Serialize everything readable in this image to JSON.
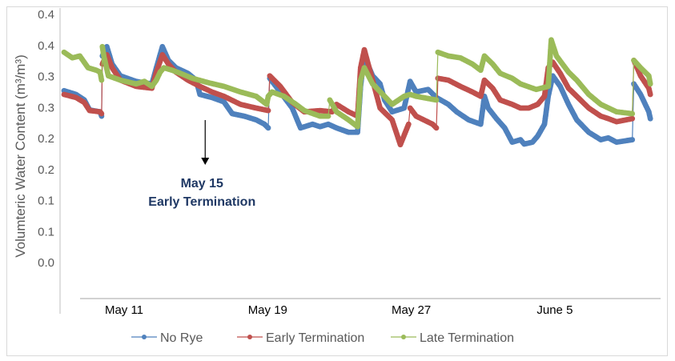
{
  "chart_data": {
    "type": "line",
    "title": "",
    "ylabel": "Volumteric Water Content (m³/m³)",
    "xlabel": "",
    "ylim": [
      -0.055,
      0.4
    ],
    "yticks": [
      0.4,
      0.35,
      0.3,
      0.25,
      0.2,
      0.15,
      0.1,
      0.05,
      0.0
    ],
    "ytick_labels": [
      "0.4",
      "0.4",
      "0.3",
      "0.3",
      "0.2",
      "0.2",
      "0.1",
      "0.1",
      "0.0"
    ],
    "xtick_labels": [
      "May 11",
      "May 19",
      "May 27",
      "June 5"
    ],
    "grid": false,
    "legend": {
      "placement": "bottom",
      "entries": [
        "No Rye",
        "Early Termination",
        "Late Termination"
      ]
    },
    "annotation": {
      "line1": "May 15",
      "line2": "Early Termination",
      "date": "05-15 12:00",
      "color": "#1f3864"
    },
    "series": [
      {
        "name": "No Rye",
        "color": "#4f81bd",
        "points": [
          [
            "05-07 16:00",
            0.277
          ],
          [
            "05-08 08:00",
            0.271
          ],
          [
            "05-08 19:00",
            0.262
          ],
          [
            "05-09 02:00",
            0.246
          ],
          [
            "05-09 16:00",
            0.243
          ],
          [
            "05-09 18:00",
            0.236
          ],
          [
            "05-09 19:00",
            0.333
          ],
          [
            "05-10 01:00",
            0.348
          ],
          [
            "05-10 08:00",
            0.32
          ],
          [
            "05-10 19:00",
            0.301
          ],
          [
            "05-11 16:00",
            0.292
          ],
          [
            "05-12 13:00",
            0.288
          ],
          [
            "05-12 19:00",
            0.314
          ],
          [
            "05-13 03:00",
            0.348
          ],
          [
            "05-13 11:00",
            0.326
          ],
          [
            "05-13 21:00",
            0.314
          ],
          [
            "05-14 13:00",
            0.305
          ],
          [
            "05-15 00:00",
            0.294
          ],
          [
            "05-15 05:00",
            0.271
          ],
          [
            "05-15 21:00",
            0.266
          ],
          [
            "05-16 13:00",
            0.259
          ],
          [
            "05-17 00:00",
            0.24
          ],
          [
            "05-17 16:00",
            0.236
          ],
          [
            "05-18 08:00",
            0.23
          ],
          [
            "05-18 19:00",
            0.223
          ],
          [
            "05-19 00:00",
            0.217
          ],
          [
            "05-19 02:00",
            0.297
          ],
          [
            "05-19 16:00",
            0.275
          ],
          [
            "05-20 08:00",
            0.249
          ],
          [
            "05-20 19:00",
            0.217
          ],
          [
            "05-21 11:00",
            0.223
          ],
          [
            "05-21 21:00",
            0.219
          ],
          [
            "05-22 08:00",
            0.223
          ],
          [
            "05-22 19:00",
            0.217
          ],
          [
            "05-23 11:00",
            0.21
          ],
          [
            "05-23 23:00",
            0.21
          ],
          [
            "05-24 03:00",
            0.284
          ],
          [
            "05-24 08:00",
            0.333
          ],
          [
            "05-24 19:00",
            0.301
          ],
          [
            "05-25 05:00",
            0.288
          ],
          [
            "05-25 11:00",
            0.262
          ],
          [
            "05-25 21:00",
            0.243
          ],
          [
            "05-26 13:00",
            0.249
          ],
          [
            "05-26 21:00",
            0.292
          ],
          [
            "05-27 05:00",
            0.275
          ],
          [
            "05-27 21:00",
            0.279
          ],
          [
            "05-28 08:00",
            0.266
          ],
          [
            "05-29 00:00",
            0.255
          ],
          [
            "05-29 11:00",
            0.243
          ],
          [
            "05-30 03:00",
            0.23
          ],
          [
            "05-30 19:00",
            0.223
          ],
          [
            "05-31 00:00",
            0.268
          ],
          [
            "05-31 05:00",
            0.249
          ],
          [
            "05-31 16:00",
            0.232
          ],
          [
            "06-01 03:00",
            0.217
          ],
          [
            "06-01 13:00",
            0.194
          ],
          [
            "06-02 00:00",
            0.198
          ],
          [
            "06-02 05:00",
            0.191
          ],
          [
            "06-02 16:00",
            0.194
          ],
          [
            "06-02 23:00",
            0.204
          ],
          [
            "06-03 08:00",
            0.223
          ],
          [
            "06-03 13:00",
            0.268
          ],
          [
            "06-03 19:00",
            0.301
          ],
          [
            "06-04 05:00",
            0.284
          ],
          [
            "06-04 16:00",
            0.255
          ],
          [
            "06-05 03:00",
            0.23
          ],
          [
            "06-05 19:00",
            0.21
          ],
          [
            "06-06 11:00",
            0.198
          ],
          [
            "06-06 21:00",
            0.201
          ],
          [
            "06-07 08:00",
            0.194
          ],
          [
            "06-08 05:00",
            0.198
          ],
          [
            "06-08 07:00",
            0.288
          ],
          [
            "06-08 16:00",
            0.271
          ],
          [
            "06-09 03:00",
            0.243
          ],
          [
            "06-09 05:00",
            0.232
          ]
        ]
      },
      {
        "name": "Early Termination",
        "color": "#c0504d",
        "points": [
          [
            "05-07 16:00",
            0.271
          ],
          [
            "05-08 08:00",
            0.266
          ],
          [
            "05-08 19:00",
            0.258
          ],
          [
            "05-09 02:00",
            0.245
          ],
          [
            "05-09 16:00",
            0.243
          ],
          [
            "05-09 18:00",
            0.24
          ],
          [
            "05-09 19:00",
            0.32
          ],
          [
            "05-10 01:00",
            0.335
          ],
          [
            "05-10 08:00",
            0.314
          ],
          [
            "05-10 19:00",
            0.294
          ],
          [
            "05-11 16:00",
            0.284
          ],
          [
            "05-12 13:00",
            0.281
          ],
          [
            "05-12 19:00",
            0.307
          ],
          [
            "05-13 03:00",
            0.335
          ],
          [
            "05-13 11:00",
            0.32
          ],
          [
            "05-13 21:00",
            0.307
          ],
          [
            "05-14 13:00",
            0.294
          ],
          [
            "05-15 05:00",
            0.284
          ],
          [
            "05-15 21:00",
            0.275
          ],
          [
            "05-16 13:00",
            0.268
          ],
          [
            "05-17 11:00",
            0.255
          ],
          [
            "05-18 08:00",
            0.249
          ],
          [
            "05-19 00:00",
            0.245
          ],
          [
            "05-19 02:00",
            0.301
          ],
          [
            "05-19 16:00",
            0.284
          ],
          [
            "05-20 08:00",
            0.258
          ],
          [
            "05-21 00:00",
            0.243
          ],
          [
            "05-21 21:00",
            0.245
          ],
          [
            "05-22 13:00",
            0.243
          ],
          [
            "05-22 19:00",
            0.255
          ],
          [
            "05-23 11:00",
            0.243
          ],
          [
            "05-23 23:00",
            0.236
          ],
          [
            "05-24 03:00",
            0.314
          ],
          [
            "05-24 08:00",
            0.343
          ],
          [
            "05-24 19:00",
            0.294
          ],
          [
            "05-25 05:00",
            0.249
          ],
          [
            "05-25 21:00",
            0.23
          ],
          [
            "05-26 08:00",
            0.19
          ],
          [
            "05-26 19:00",
            0.223
          ],
          [
            "05-26 21:00",
            0.249
          ],
          [
            "05-27 05:00",
            0.236
          ],
          [
            "05-28 03:00",
            0.223
          ],
          [
            "05-28 08:00",
            0.217
          ],
          [
            "05-28 10:00",
            0.297
          ],
          [
            "05-29 00:00",
            0.294
          ],
          [
            "05-29 16:00",
            0.284
          ],
          [
            "05-30 08:00",
            0.275
          ],
          [
            "05-30 19:00",
            0.268
          ],
          [
            "05-31 00:00",
            0.294
          ],
          [
            "05-31 11:00",
            0.281
          ],
          [
            "05-31 21:00",
            0.262
          ],
          [
            "06-01 13:00",
            0.255
          ],
          [
            "06-02 00:00",
            0.249
          ],
          [
            "06-02 11:00",
            0.249
          ],
          [
            "06-02 23:00",
            0.255
          ],
          [
            "06-03 08:00",
            0.268
          ],
          [
            "06-03 13:00",
            0.314
          ],
          [
            "06-03 19:00",
            0.323
          ],
          [
            "06-04 05:00",
            0.305
          ],
          [
            "06-04 16:00",
            0.281
          ],
          [
            "06-05 03:00",
            0.268
          ],
          [
            "06-05 19:00",
            0.249
          ],
          [
            "06-06 11:00",
            0.236
          ],
          [
            "06-06 21:00",
            0.232
          ],
          [
            "06-07 08:00",
            0.227
          ],
          [
            "06-08 05:00",
            0.232
          ],
          [
            "06-08 07:00",
            0.326
          ],
          [
            "06-08 16:00",
            0.301
          ],
          [
            "06-09 03:00",
            0.281
          ],
          [
            "06-09 05:00",
            0.271
          ]
        ]
      },
      {
        "name": "Late Termination",
        "color": "#9bbb59",
        "points": [
          [
            "05-07 16:00",
            0.339
          ],
          [
            "05-08 03:00",
            0.33
          ],
          [
            "05-08 13:00",
            0.333
          ],
          [
            "05-09 00:00",
            0.314
          ],
          [
            "05-09 11:00",
            0.31
          ],
          [
            "05-09 16:00",
            0.307
          ],
          [
            "05-09 18:00",
            0.294
          ],
          [
            "05-09 19:00",
            0.348
          ],
          [
            "05-09 21:00",
            0.333
          ],
          [
            "05-10 03:00",
            0.301
          ],
          [
            "05-10 19:00",
            0.294
          ],
          [
            "05-11 16:00",
            0.288
          ],
          [
            "05-12 03:00",
            0.292
          ],
          [
            "05-12 13:00",
            0.284
          ],
          [
            "05-12 19:00",
            0.294
          ],
          [
            "05-13 00:00",
            0.307
          ],
          [
            "05-13 05:00",
            0.314
          ],
          [
            "05-13 16:00",
            0.31
          ],
          [
            "05-14 03:00",
            0.305
          ],
          [
            "05-14 19:00",
            0.297
          ],
          [
            "05-15 16:00",
            0.29
          ],
          [
            "05-16 13:00",
            0.284
          ],
          [
            "05-17 11:00",
            0.275
          ],
          [
            "05-18 08:00",
            0.268
          ],
          [
            "05-18 22:00",
            0.255
          ],
          [
            "05-19 00:00",
            0.268
          ],
          [
            "05-19 05:00",
            0.275
          ],
          [
            "05-19 21:00",
            0.268
          ],
          [
            "05-20 13:00",
            0.255
          ],
          [
            "05-21 00:00",
            0.245
          ],
          [
            "05-21 21:00",
            0.236
          ],
          [
            "05-22 08:00",
            0.236
          ],
          [
            "05-22 10:00",
            0.262
          ],
          [
            "05-22 19:00",
            0.243
          ],
          [
            "05-23 11:00",
            0.23
          ],
          [
            "05-23 23:00",
            0.219
          ],
          [
            "05-24 03:00",
            0.294
          ],
          [
            "05-24 08:00",
            0.314
          ],
          [
            "05-24 19:00",
            0.288
          ],
          [
            "05-25 11:00",
            0.268
          ],
          [
            "05-25 21:00",
            0.255
          ],
          [
            "05-26 13:00",
            0.268
          ],
          [
            "05-26 21:00",
            0.271
          ],
          [
            "05-27 05:00",
            0.268
          ],
          [
            "05-28 08:00",
            0.262
          ],
          [
            "05-28 10:00",
            0.339
          ],
          [
            "05-29 00:00",
            0.333
          ],
          [
            "05-29 16:00",
            0.33
          ],
          [
            "05-30 08:00",
            0.32
          ],
          [
            "05-30 19:00",
            0.31
          ],
          [
            "05-31 00:00",
            0.333
          ],
          [
            "05-31 11:00",
            0.32
          ],
          [
            "05-31 21:00",
            0.305
          ],
          [
            "06-01 13:00",
            0.297
          ],
          [
            "06-02 00:00",
            0.288
          ],
          [
            "06-02 21:00",
            0.279
          ],
          [
            "06-03 13:00",
            0.284
          ],
          [
            "06-03 17:00",
            0.359
          ],
          [
            "06-04 00:00",
            0.333
          ],
          [
            "06-04 16:00",
            0.307
          ],
          [
            "06-05 03:00",
            0.294
          ],
          [
            "06-05 19:00",
            0.271
          ],
          [
            "06-06 11:00",
            0.255
          ],
          [
            "06-07 08:00",
            0.243
          ],
          [
            "06-08 05:00",
            0.24
          ],
          [
            "06-08 07:00",
            0.326
          ],
          [
            "06-08 16:00",
            0.314
          ],
          [
            "06-09 03:00",
            0.301
          ],
          [
            "06-09 05:00",
            0.288
          ]
        ]
      }
    ]
  }
}
